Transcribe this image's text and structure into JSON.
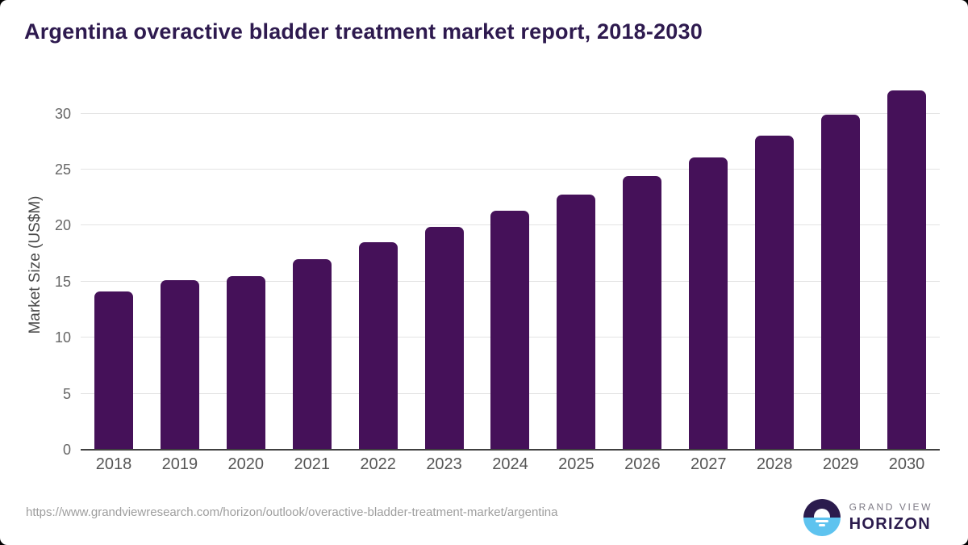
{
  "header": {
    "title": "Argentina overactive bladder treatment market report, 2018-2030",
    "title_color": "#2e1a4f"
  },
  "chart_data": {
    "type": "bar",
    "title": "Argentina overactive bladder treatment market report, 2018-2030",
    "categories": [
      "2018",
      "2019",
      "2020",
      "2021",
      "2022",
      "2023",
      "2024",
      "2025",
      "2026",
      "2027",
      "2028",
      "2029",
      "2030"
    ],
    "values": [
      14.1,
      15.1,
      15.5,
      17.0,
      18.5,
      19.9,
      21.3,
      22.8,
      24.4,
      26.1,
      28.0,
      29.9,
      32.1
    ],
    "xlabel": "",
    "ylabel": "Market Size (US$M)",
    "ylim": [
      0,
      33
    ],
    "yticks": [
      0,
      5,
      10,
      15,
      20,
      25,
      30
    ],
    "grid": true,
    "legend": false,
    "bar_color": "#451159",
    "gridline_color": "#e3e3e3",
    "axis_line_color": "#404040",
    "ytick_color": "#666666",
    "xtick_color": "#555555",
    "ylabel_color": "#4a4a4a"
  },
  "footer": {
    "source_url": "https://www.grandviewresearch.com/horizon/outlook/overactive-bladder-treatment-market/argentina",
    "logo": {
      "line1": "GRAND VIEW",
      "line2": "HORIZON",
      "purple": "#2b1b4d",
      "blue": "#5ec3ef"
    }
  }
}
